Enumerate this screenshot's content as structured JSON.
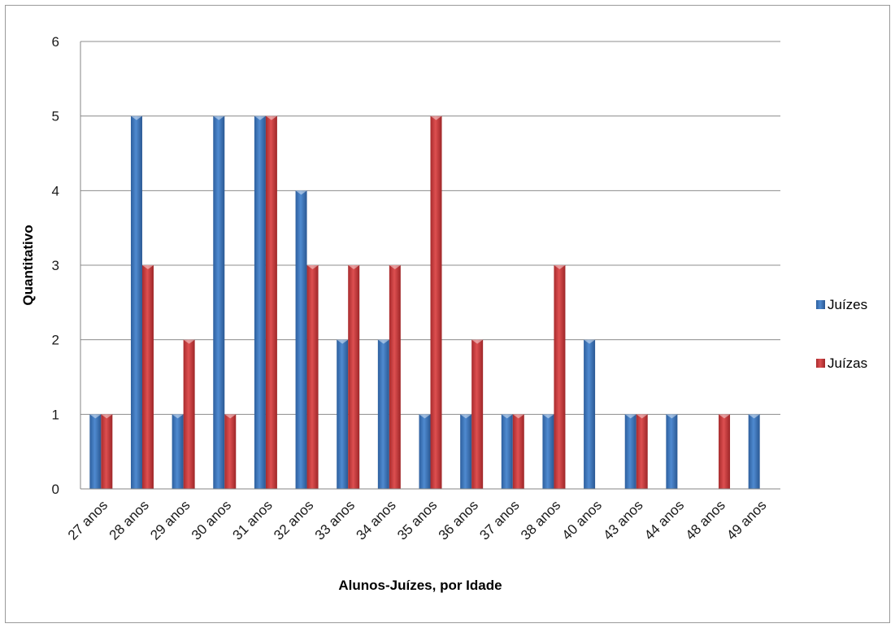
{
  "chart_data": {
    "type": "bar",
    "title": "",
    "xlabel": "Alunos-Juízes, por Idade",
    "ylabel": "Quantitativo",
    "ylim": [
      0,
      6
    ],
    "yticks": [
      "0",
      "1",
      "2",
      "3",
      "4",
      "5",
      "6"
    ],
    "grid": true,
    "legend_position": "right",
    "categories": [
      "27 anos",
      "28 anos",
      "29 anos",
      "30 anos",
      "31 anos",
      "32 anos",
      "33 anos",
      "34 anos",
      "35 anos",
      "36 anos",
      "37 anos",
      "38 anos",
      "40 anos",
      "43 anos",
      "44 anos",
      "48 anos",
      "49 anos"
    ],
    "series": [
      {
        "name": "Juízes",
        "color": "#3a73b8",
        "values": [
          1,
          5,
          1,
          5,
          5,
          4,
          2,
          2,
          1,
          1,
          1,
          1,
          2,
          1,
          1,
          0,
          1
        ]
      },
      {
        "name": "Juízas",
        "color": "#c8383a",
        "values": [
          1,
          3,
          2,
          1,
          5,
          3,
          3,
          3,
          5,
          2,
          1,
          3,
          0,
          1,
          0,
          1,
          0
        ]
      }
    ]
  }
}
